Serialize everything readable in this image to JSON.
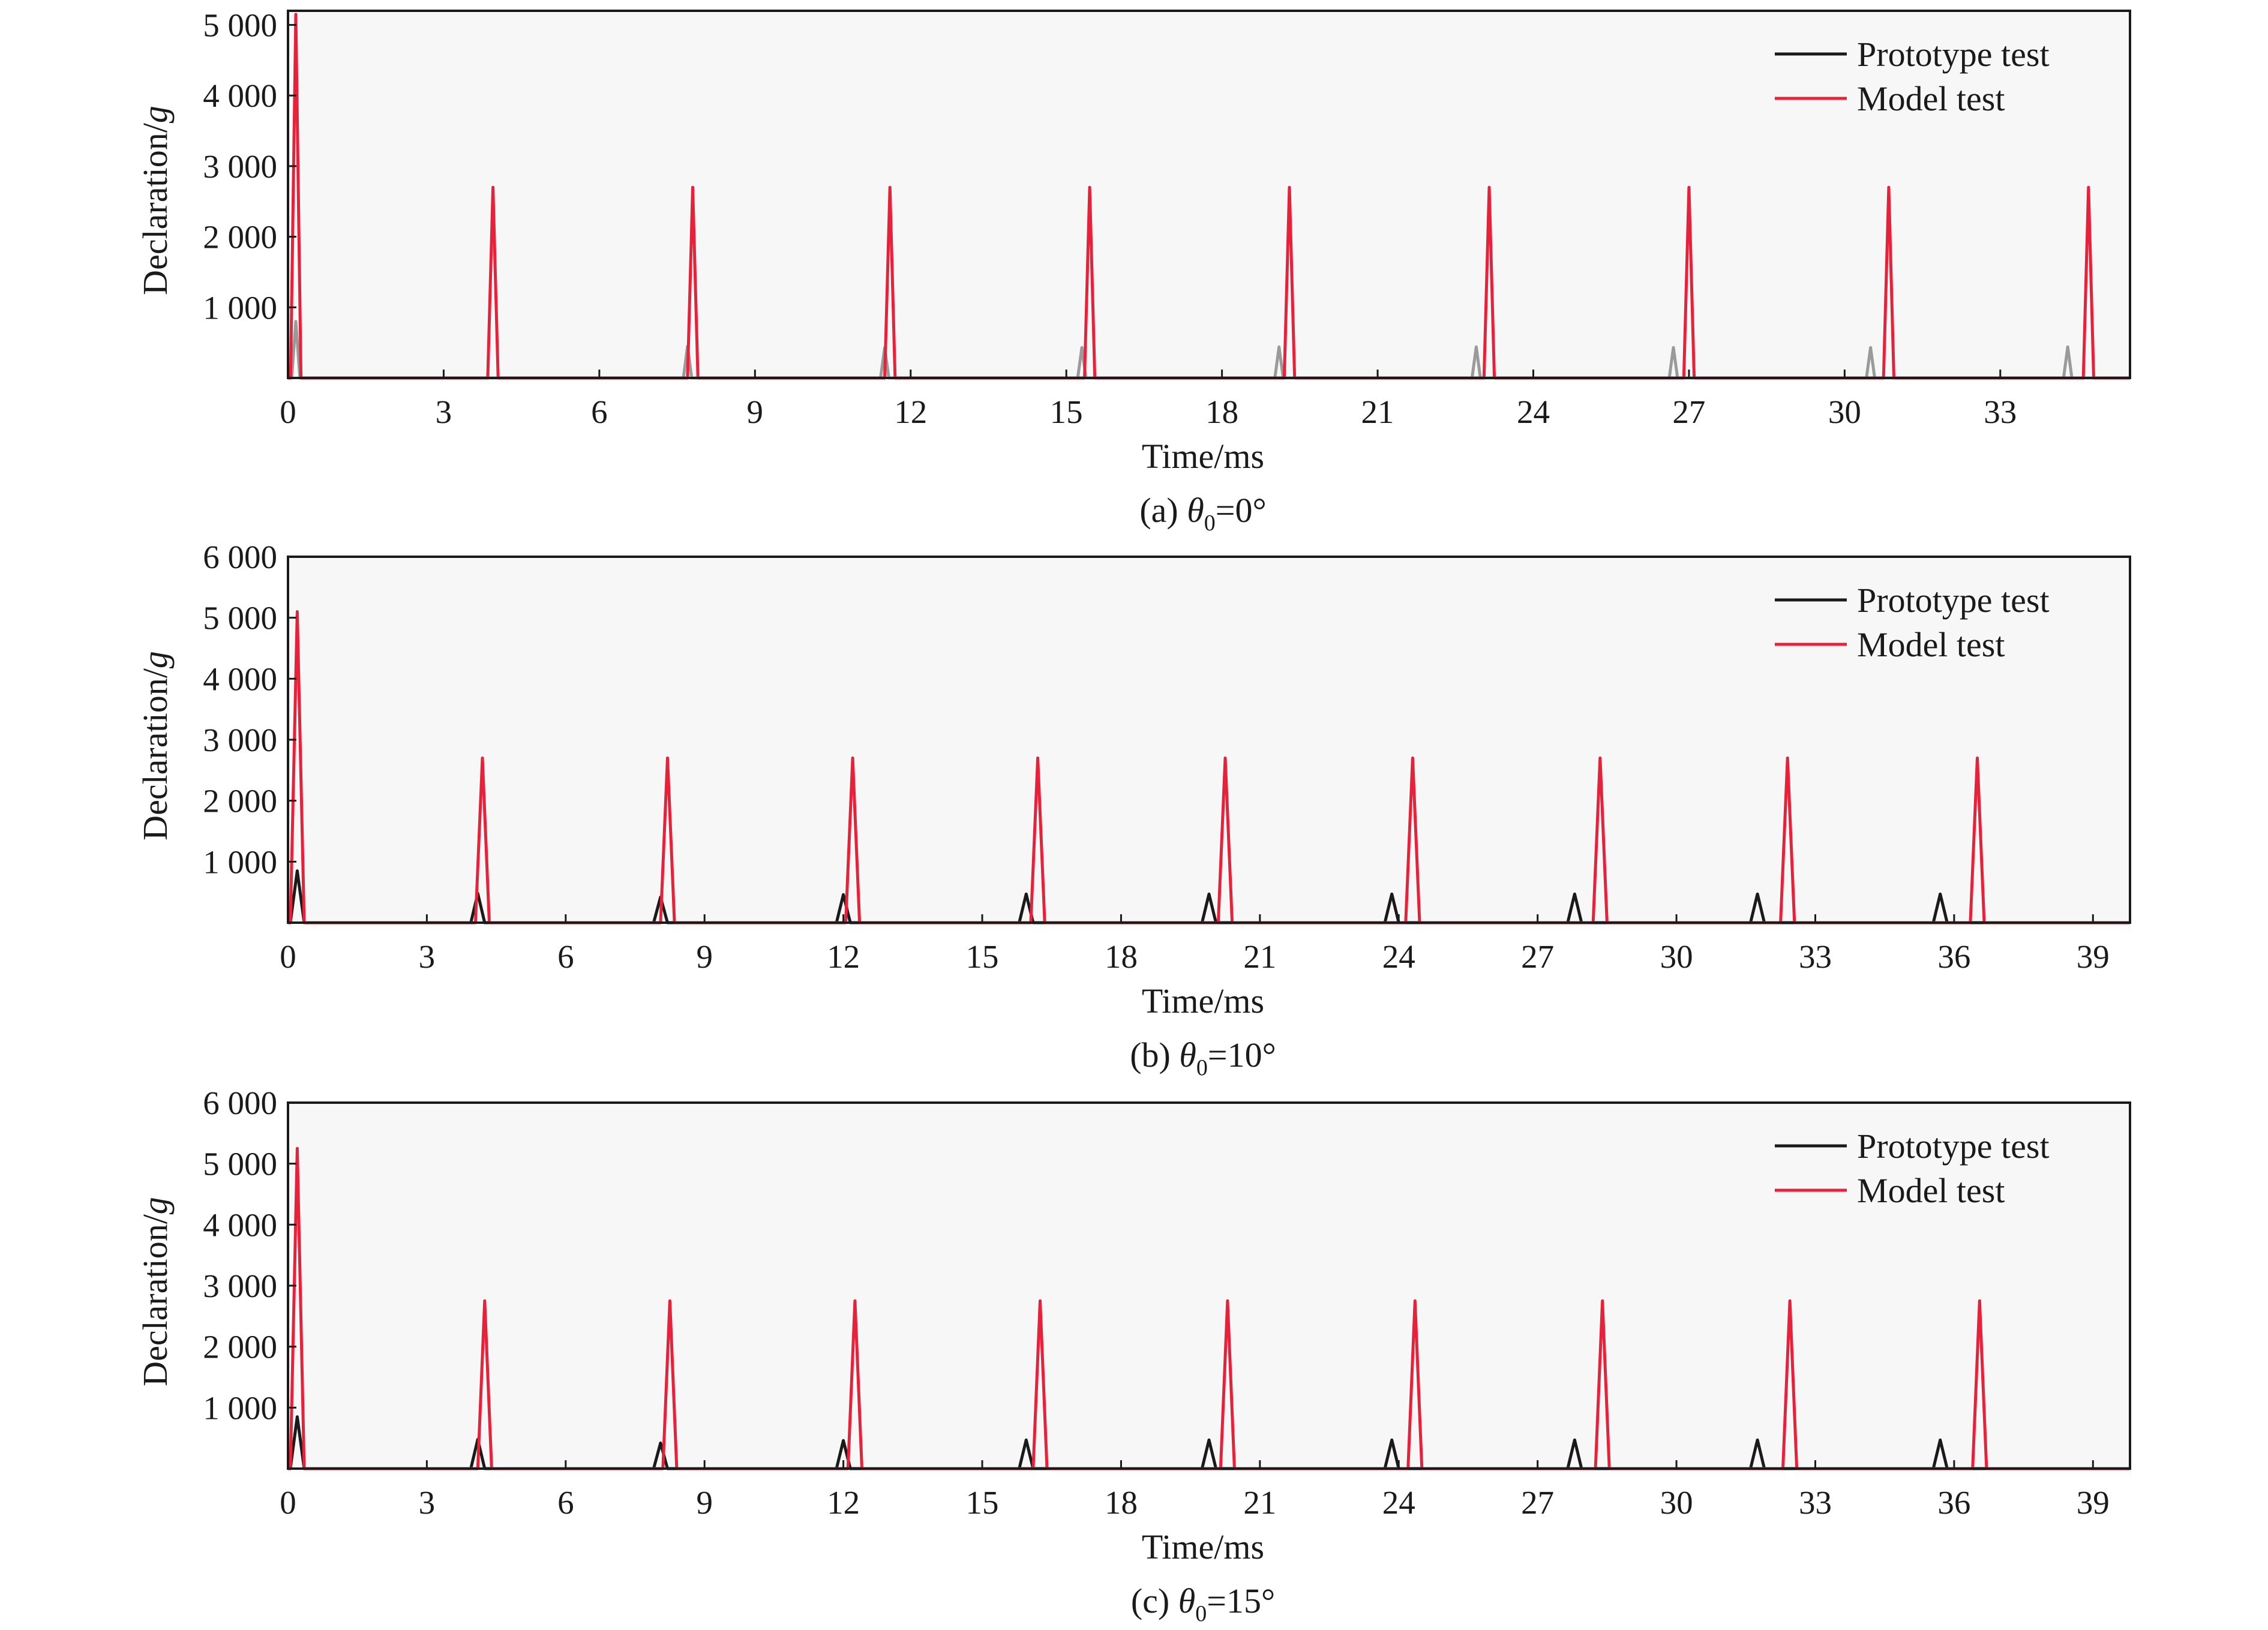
{
  "chart_data": [
    {
      "type": "line",
      "caption_prefix": "(a) ",
      "caption_var": "θ",
      "caption_sub": "0",
      "caption_suffix": "=0°",
      "xlabel": "Time/ms",
      "ylabel": "Declaration/g",
      "xlim": [
        0,
        35.5
      ],
      "ylim": [
        0,
        5200
      ],
      "xticks": [
        0,
        3,
        6,
        9,
        12,
        15,
        18,
        21,
        24,
        27,
        30,
        33
      ],
      "yticks": [
        1000,
        2000,
        3000,
        4000,
        5000
      ],
      "ytick_labels": [
        "1 000",
        "2 000",
        "3 000",
        "4 000",
        "5 000"
      ],
      "legend": {
        "position": "top-right",
        "entries": [
          "Prototype test",
          "Model test"
        ]
      },
      "series": [
        {
          "name": "Prototype test",
          "color": "#9a9a9a",
          "pulse_halfwidth_ms": 0.08,
          "peaks": [
            {
              "t": 0.15,
              "v": 800
            },
            {
              "t": 7.7,
              "v": 450
            },
            {
              "t": 11.5,
              "v": 430
            },
            {
              "t": 15.3,
              "v": 430
            },
            {
              "t": 19.1,
              "v": 440
            },
            {
              "t": 22.9,
              "v": 440
            },
            {
              "t": 26.7,
              "v": 430
            },
            {
              "t": 30.5,
              "v": 430
            },
            {
              "t": 34.3,
              "v": 440
            }
          ]
        },
        {
          "name": "Model test",
          "color": "#e8213a",
          "pulse_halfwidth_ms": 0.1,
          "peaks": [
            {
              "t": 0.15,
              "v": 5150
            },
            {
              "t": 3.95,
              "v": 2700
            },
            {
              "t": 7.8,
              "v": 2700
            },
            {
              "t": 11.6,
              "v": 2700
            },
            {
              "t": 15.45,
              "v": 2700
            },
            {
              "t": 19.3,
              "v": 2700
            },
            {
              "t": 23.15,
              "v": 2700
            },
            {
              "t": 27.0,
              "v": 2700
            },
            {
              "t": 30.85,
              "v": 2700
            },
            {
              "t": 34.7,
              "v": 2700
            }
          ]
        }
      ]
    },
    {
      "type": "line",
      "caption_prefix": "(b) ",
      "caption_var": "θ",
      "caption_sub": "0",
      "caption_suffix": "=10°",
      "xlabel": "Time/ms",
      "ylabel": "Declaration/g",
      "xlim": [
        0,
        39.8
      ],
      "ylim": [
        0,
        6000
      ],
      "xticks": [
        0,
        3,
        6,
        9,
        12,
        15,
        18,
        21,
        24,
        27,
        30,
        33,
        36,
        39
      ],
      "yticks": [
        1000,
        2000,
        3000,
        4000,
        5000,
        6000
      ],
      "ytick_labels": [
        "1 000",
        "2 000",
        "3 000",
        "4 000",
        "5 000",
        "6 000"
      ],
      "legend": {
        "position": "top-right",
        "entries": [
          "Prototype test",
          "Model test"
        ]
      },
      "series": [
        {
          "name": "Prototype test",
          "color": "#1a1a1a",
          "pulse_halfwidth_ms": 0.15,
          "peaks": [
            {
              "t": 0.2,
              "v": 850
            },
            {
              "t": 4.1,
              "v": 480
            },
            {
              "t": 8.05,
              "v": 420
            },
            {
              "t": 12.0,
              "v": 460
            },
            {
              "t": 15.95,
              "v": 470
            },
            {
              "t": 19.9,
              "v": 470
            },
            {
              "t": 23.85,
              "v": 470
            },
            {
              "t": 27.8,
              "v": 470
            },
            {
              "t": 31.75,
              "v": 470
            },
            {
              "t": 35.7,
              "v": 470
            }
          ]
        },
        {
          "name": "Model test",
          "color": "#e8213a",
          "pulse_halfwidth_ms": 0.15,
          "peaks": [
            {
              "t": 0.2,
              "v": 5100
            },
            {
              "t": 4.2,
              "v": 2700
            },
            {
              "t": 8.2,
              "v": 2700
            },
            {
              "t": 12.2,
              "v": 2700
            },
            {
              "t": 16.2,
              "v": 2700
            },
            {
              "t": 20.25,
              "v": 2700
            },
            {
              "t": 24.3,
              "v": 2700
            },
            {
              "t": 28.35,
              "v": 2700
            },
            {
              "t": 32.4,
              "v": 2700
            },
            {
              "t": 36.5,
              "v": 2700
            }
          ]
        }
      ]
    },
    {
      "type": "line",
      "caption_prefix": "(c) ",
      "caption_var": "θ",
      "caption_sub": "0",
      "caption_suffix": "=15°",
      "xlabel": "Time/ms",
      "ylabel": "Declaration/g",
      "xlim": [
        0,
        39.8
      ],
      "ylim": [
        0,
        6000
      ],
      "xticks": [
        0,
        3,
        6,
        9,
        12,
        15,
        18,
        21,
        24,
        27,
        30,
        33,
        36,
        39
      ],
      "yticks": [
        1000,
        2000,
        3000,
        4000,
        5000,
        6000
      ],
      "ytick_labels": [
        "1 000",
        "2 000",
        "3 000",
        "4 000",
        "5 000",
        "6 000"
      ],
      "legend": {
        "position": "top-right",
        "entries": [
          "Prototype test",
          "Model test"
        ]
      },
      "series": [
        {
          "name": "Prototype test",
          "color": "#1a1a1a",
          "pulse_halfwidth_ms": 0.15,
          "peaks": [
            {
              "t": 0.2,
              "v": 850
            },
            {
              "t": 4.1,
              "v": 480
            },
            {
              "t": 8.05,
              "v": 420
            },
            {
              "t": 12.0,
              "v": 460
            },
            {
              "t": 15.95,
              "v": 470
            },
            {
              "t": 19.9,
              "v": 470
            },
            {
              "t": 23.85,
              "v": 470
            },
            {
              "t": 27.8,
              "v": 470
            },
            {
              "t": 31.75,
              "v": 470
            },
            {
              "t": 35.7,
              "v": 470
            }
          ]
        },
        {
          "name": "Model test",
          "color": "#e8213a",
          "pulse_halfwidth_ms": 0.15,
          "peaks": [
            {
              "t": 0.2,
              "v": 5250
            },
            {
              "t": 4.25,
              "v": 2750
            },
            {
              "t": 8.25,
              "v": 2750
            },
            {
              "t": 12.25,
              "v": 2750
            },
            {
              "t": 16.25,
              "v": 2750
            },
            {
              "t": 20.3,
              "v": 2750
            },
            {
              "t": 24.35,
              "v": 2750
            },
            {
              "t": 28.4,
              "v": 2750
            },
            {
              "t": 32.45,
              "v": 2750
            },
            {
              "t": 36.55,
              "v": 2750
            }
          ]
        }
      ]
    }
  ]
}
